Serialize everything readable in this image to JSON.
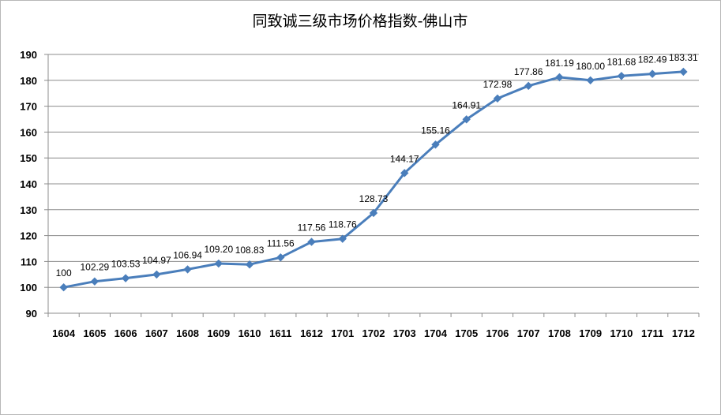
{
  "chart_data": {
    "type": "line",
    "title": "同致诚三级市场价格指数-佛山市",
    "categories": [
      "1604",
      "1605",
      "1606",
      "1607",
      "1608",
      "1609",
      "1610",
      "1611",
      "1612",
      "1701",
      "1702",
      "1703",
      "1704",
      "1705",
      "1706",
      "1707",
      "1708",
      "1709",
      "1710",
      "1711",
      "1712"
    ],
    "series": [
      {
        "values": [
          100,
          102.29,
          103.53,
          104.97,
          106.94,
          109.2,
          108.83,
          111.56,
          117.56,
          118.76,
          128.73,
          144.17,
          155.16,
          164.91,
          172.98,
          177.86,
          181.19,
          180.0,
          181.68,
          182.49,
          183.31
        ],
        "labels": [
          "100",
          "102.29",
          "103.53",
          "104.97",
          "106.94",
          "109.20",
          "108.83",
          "111.56",
          "117.56",
          "118.76",
          "128.73",
          "144.17",
          "155.16",
          "164.91",
          "172.98",
          "177.86",
          "181.19",
          "180.00",
          "181.68",
          "182.49",
          "183.31"
        ],
        "color": "#4a7ebb"
      }
    ],
    "ylim": [
      90,
      190
    ],
    "yticks": [
      "90",
      "100",
      "110",
      "120",
      "130",
      "140",
      "150",
      "160",
      "170",
      "180",
      "190"
    ],
    "xlabel": "",
    "ylabel": "",
    "grid": true,
    "legend": "none"
  }
}
